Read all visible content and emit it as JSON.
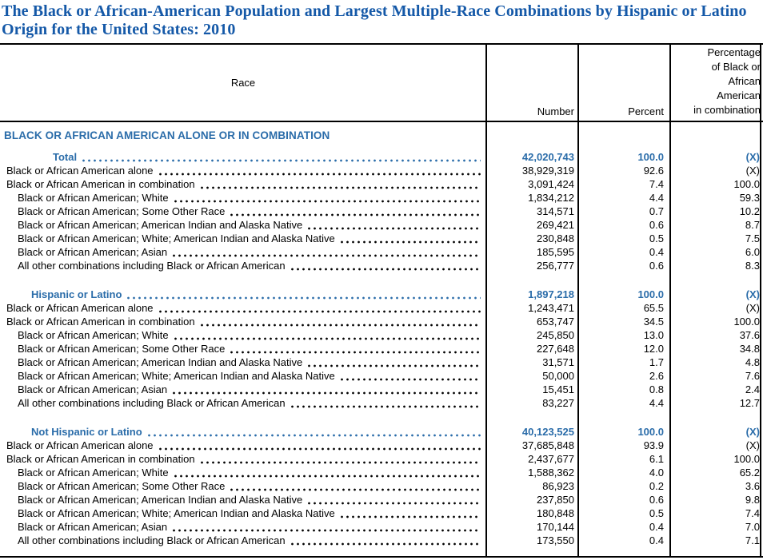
{
  "title": "The Black or African-American Population and Largest Multiple-Race Combinations by Hispanic or Latino Origin for the United States: 2010",
  "colors": {
    "title_blue": "#1559A8",
    "accent_blue": "#2A6CA9",
    "rule_black": "#000000"
  },
  "table": {
    "columns": {
      "race": "Race",
      "number": "Number",
      "percent": "Percent",
      "percentage_lines": [
        "Percentage",
        "of Black or",
        "African",
        "American",
        "in combination"
      ]
    },
    "section_heading": "BLACK OR AFRICAN AMERICAN ALONE OR IN COMBINATION",
    "groups": [
      {
        "rows": [
          {
            "label": "Total",
            "level": "total",
            "head": true,
            "number": "42,020,743",
            "percent": "100.0",
            "percentage": "(X)"
          },
          {
            "label": "Black or African American alone",
            "level": "main",
            "head": false,
            "number": "38,929,319",
            "percent": "92.6",
            "percentage": "(X)"
          },
          {
            "label": "Black or African American in combination",
            "level": "main",
            "head": false,
            "number": "3,091,424",
            "percent": "7.4",
            "percentage": "100.0"
          },
          {
            "label": "Black or African American; White",
            "level": "sub",
            "head": false,
            "number": "1,834,212",
            "percent": "4.4",
            "percentage": "59.3"
          },
          {
            "label": "Black or African American; Some Other Race",
            "level": "sub",
            "head": false,
            "number": "314,571",
            "percent": "0.7",
            "percentage": "10.2"
          },
          {
            "label": "Black or African American; American Indian and Alaska Native",
            "level": "sub",
            "head": false,
            "number": "269,421",
            "percent": "0.6",
            "percentage": "8.7"
          },
          {
            "label": "Black or African American; White; American Indian and Alaska Native",
            "level": "sub",
            "head": false,
            "number": "230,848",
            "percent": "0.5",
            "percentage": "7.5"
          },
          {
            "label": "Black or African American; Asian",
            "level": "sub",
            "head": false,
            "number": "185,595",
            "percent": "0.4",
            "percentage": "6.0"
          },
          {
            "label": "All other combinations including Black or African American",
            "level": "sub",
            "head": false,
            "number": "256,777",
            "percent": "0.6",
            "percentage": "8.3"
          }
        ]
      },
      {
        "rows": [
          {
            "label": "Hispanic or Latino",
            "level": "group",
            "head": true,
            "number": "1,897,218",
            "percent": "100.0",
            "percentage": "(X)"
          },
          {
            "label": "Black or African American alone",
            "level": "main",
            "head": false,
            "number": "1,243,471",
            "percent": "65.5",
            "percentage": "(X)"
          },
          {
            "label": "Black or African American in combination",
            "level": "main",
            "head": false,
            "number": "653,747",
            "percent": "34.5",
            "percentage": "100.0"
          },
          {
            "label": "Black or African American; White",
            "level": "sub",
            "head": false,
            "number": "245,850",
            "percent": "13.0",
            "percentage": "37.6"
          },
          {
            "label": "Black or African American; Some Other Race",
            "level": "sub",
            "head": false,
            "number": "227,648",
            "percent": "12.0",
            "percentage": "34.8"
          },
          {
            "label": "Black or African American; American Indian and Alaska Native",
            "level": "sub",
            "head": false,
            "number": "31,571",
            "percent": "1.7",
            "percentage": "4.8"
          },
          {
            "label": "Black or African American; White; American Indian and Alaska Native",
            "level": "sub",
            "head": false,
            "number": "50,000",
            "percent": "2.6",
            "percentage": "7.6"
          },
          {
            "label": "Black or African American; Asian",
            "level": "sub",
            "head": false,
            "number": "15,451",
            "percent": "0.8",
            "percentage": "2.4"
          },
          {
            "label": "All other combinations including Black or African American",
            "level": "sub",
            "head": false,
            "number": "83,227",
            "percent": "4.4",
            "percentage": "12.7"
          }
        ]
      },
      {
        "rows": [
          {
            "label": "Not Hispanic or Latino",
            "level": "group",
            "head": true,
            "number": "40,123,525",
            "percent": "100.0",
            "percentage": "(X)"
          },
          {
            "label": "Black or African American alone",
            "level": "main",
            "head": false,
            "number": "37,685,848",
            "percent": "93.9",
            "percentage": "(X)"
          },
          {
            "label": "Black or African American in combination",
            "level": "main",
            "head": false,
            "number": "2,437,677",
            "percent": "6.1",
            "percentage": "100.0"
          },
          {
            "label": "Black or African American; White",
            "level": "sub",
            "head": false,
            "number": "1,588,362",
            "percent": "4.0",
            "percentage": "65.2"
          },
          {
            "label": "Black or African American; Some Other Race",
            "level": "sub",
            "head": false,
            "number": "86,923",
            "percent": "0.2",
            "percentage": "3.6"
          },
          {
            "label": "Black or African American; American Indian and Alaska Native",
            "level": "sub",
            "head": false,
            "number": "237,850",
            "percent": "0.6",
            "percentage": "9.8"
          },
          {
            "label": "Black or African American; White; American Indian and Alaska Native",
            "level": "sub",
            "head": false,
            "number": "180,848",
            "percent": "0.5",
            "percentage": "7.4"
          },
          {
            "label": "Black or African American; Asian",
            "level": "sub",
            "head": false,
            "number": "170,144",
            "percent": "0.4",
            "percentage": "7.0"
          },
          {
            "label": "All other combinations including Black or African American",
            "level": "sub",
            "head": false,
            "number": "173,550",
            "percent": "0.4",
            "percentage": "7.1"
          }
        ]
      }
    ]
  }
}
